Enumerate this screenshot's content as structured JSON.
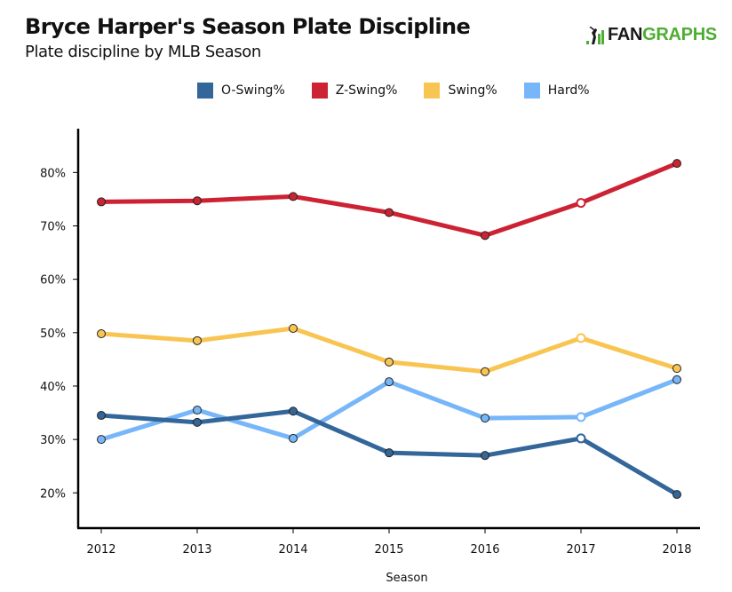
{
  "header": {
    "title": "Bryce Harper's Season Plate Discipline",
    "subtitle": "Plate discipline by MLB Season",
    "logo_text_dark": "FAN",
    "logo_text_green": "GRAPHS",
    "logo_icon": "batter-bars-icon"
  },
  "colors": {
    "o_swing": "#336699",
    "z_swing": "#cc2233",
    "swing": "#f8c552",
    "hard": "#77b6f8",
    "logo_green": "#4dae32"
  },
  "chart_data": {
    "type": "line",
    "title": "Bryce Harper's Season Plate Discipline",
    "subtitle": "Plate discipline by MLB Season",
    "xlabel": "Season",
    "ylabel": "",
    "x": [
      "2012",
      "2013",
      "2014",
      "2015",
      "2016",
      "2017",
      "2018"
    ],
    "y_ticks": [
      20,
      30,
      40,
      50,
      60,
      70,
      80
    ],
    "y_tick_labels": [
      "20%",
      "30%",
      "40%",
      "50%",
      "60%",
      "70%",
      "80%"
    ],
    "ylim": [
      13.4,
      88.2
    ],
    "grid": false,
    "legend_position": "top-center",
    "series": [
      {
        "name": "O-Swing%",
        "color": "#336699",
        "values": [
          34.5,
          33.2,
          35.3,
          27.5,
          27.0,
          30.2,
          19.7
        ]
      },
      {
        "name": "Z-Swing%",
        "color": "#cc2233",
        "values": [
          74.5,
          74.7,
          75.5,
          72.5,
          68.2,
          74.3,
          81.7
        ]
      },
      {
        "name": "Swing%",
        "color": "#f8c552",
        "values": [
          49.8,
          48.5,
          50.8,
          44.5,
          42.7,
          49.0,
          43.3
        ]
      },
      {
        "name": "Hard%",
        "color": "#77b6f8",
        "values": [
          30.0,
          35.5,
          30.2,
          40.8,
          34.0,
          34.2,
          41.2
        ]
      }
    ],
    "highlighted_point_index": 5
  }
}
